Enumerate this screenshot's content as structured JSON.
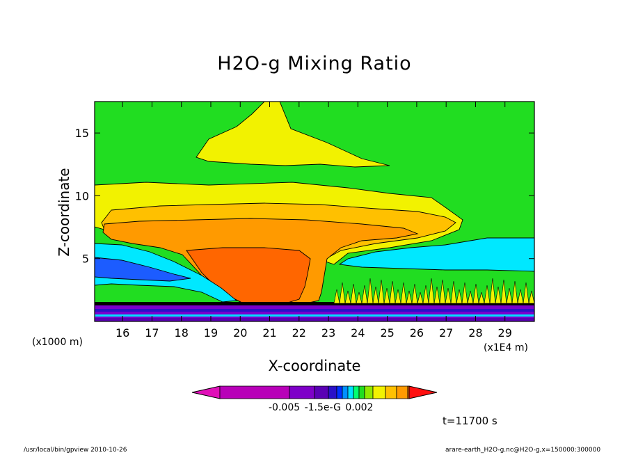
{
  "chart_data": {
    "type": "contour",
    "title": "H2O-g Mixing Ratio",
    "xlabel": "X-coordinate",
    "ylabel": "Z-coordinate",
    "x_unit_left": "(x1000 m)",
    "x_unit_right": "(x1E4 m)",
    "xticks": [
      16,
      17,
      18,
      19,
      20,
      21,
      22,
      23,
      24,
      25,
      26,
      27,
      28,
      29
    ],
    "yticks": [
      5,
      10,
      15
    ],
    "xlim": [
      15.05,
      30.0
    ],
    "ylim": [
      0,
      17.5
    ],
    "grid": false,
    "regions": [
      {
        "name": "background",
        "color": "#21dd21"
      },
      {
        "name": "upper-plume",
        "color": "#f2f200"
      },
      {
        "name": "anvil-outer",
        "color": "#f2f200"
      },
      {
        "name": "anvil-mid",
        "color": "#ffc000"
      },
      {
        "name": "anvil-core",
        "color": "#ff9a00"
      },
      {
        "name": "updraft-core",
        "color": "#ff6600"
      },
      {
        "name": "left-cyan",
        "color": "#00e8ff"
      },
      {
        "name": "left-blue",
        "color": "#1c5cff"
      },
      {
        "name": "right-cyan",
        "color": "#00e8ff"
      },
      {
        "name": "surface-layer",
        "color": "#7a00cc"
      }
    ],
    "colorbar": {
      "colors": [
        "#e010b8",
        "#b800b8",
        "#7e00c8",
        "#5a00b4",
        "#2a10c8",
        "#0030ff",
        "#0090ff",
        "#00e0ff",
        "#00ff70",
        "#21dd21",
        "#90e800",
        "#f2f200",
        "#ffc000",
        "#ff9a00",
        "#ff6600",
        "#ff1010"
      ],
      "labels": "-0.005  -1.5e-G  0.002"
    },
    "time_label": "t=11700 s"
  },
  "footer": {
    "left": "/usr/local/bin/gpview   2010-10-26",
    "right": "arare-earth_H2O-g.nc@H2O-g,x=150000:300000"
  }
}
